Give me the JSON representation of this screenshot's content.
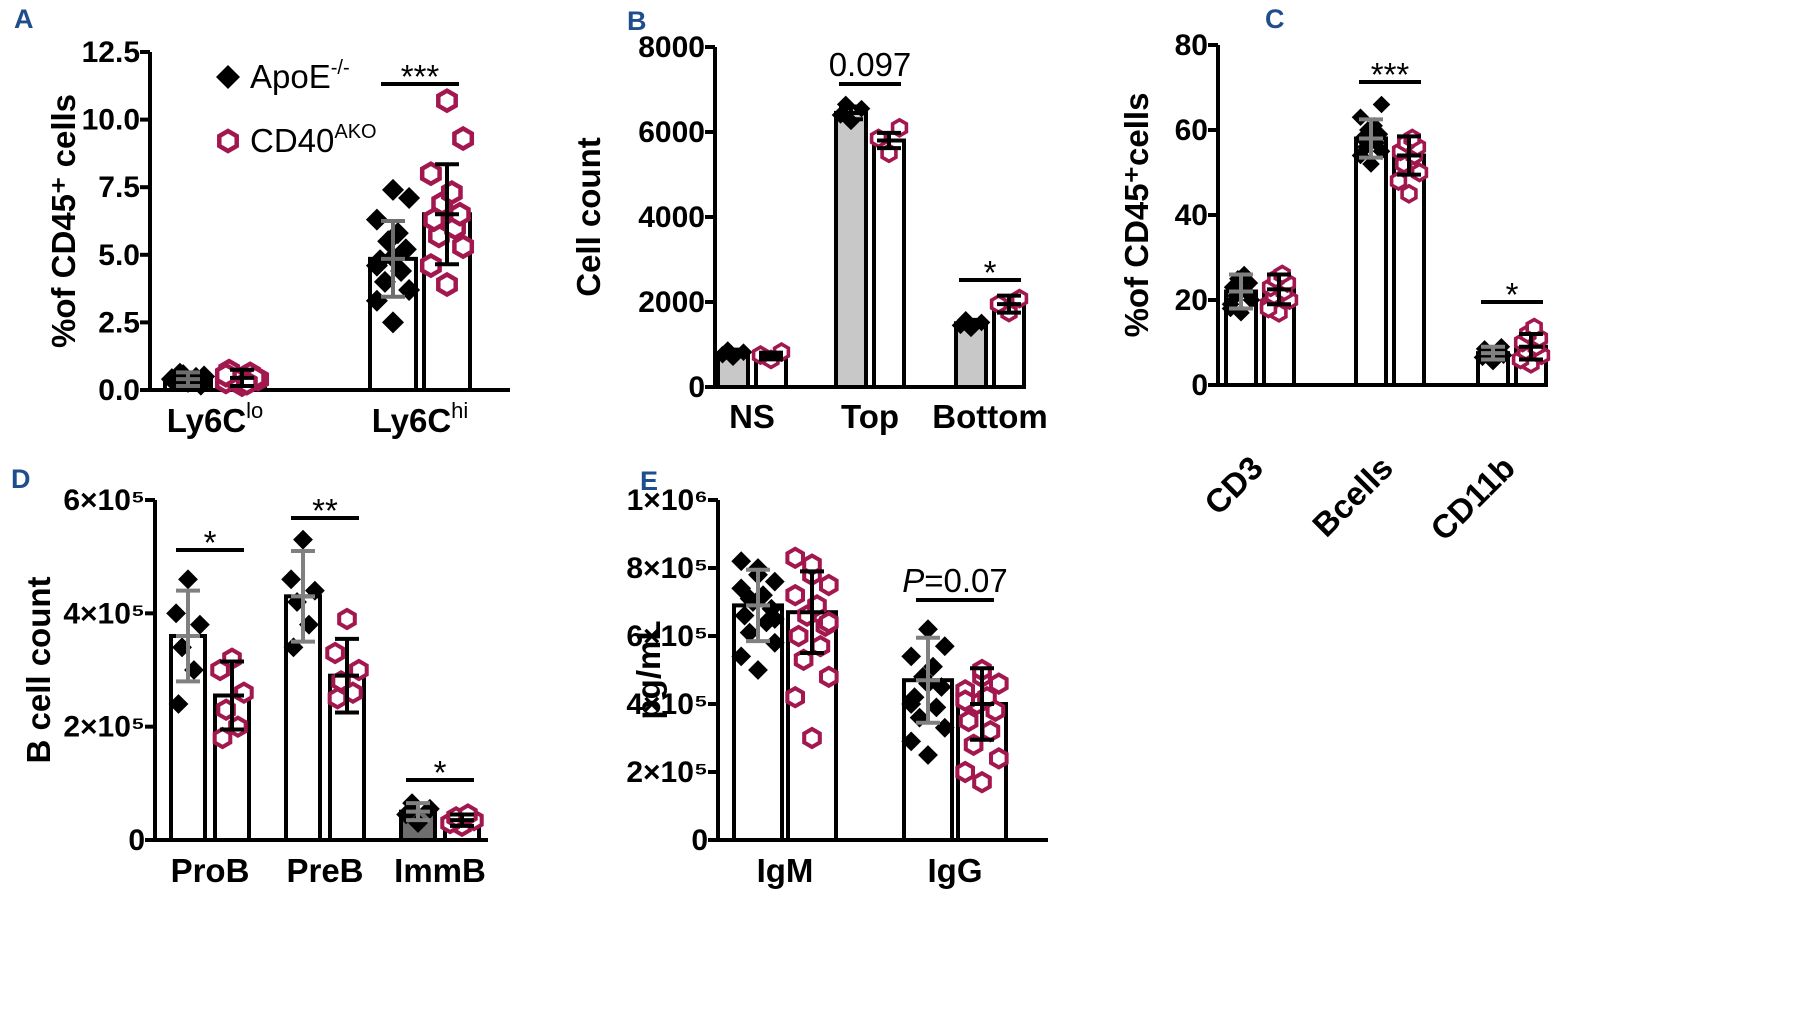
{
  "legend": {
    "series": [
      {
        "name": "ApoE",
        "superscript": "-/-",
        "marker": "diamond-icon",
        "color": "#000000"
      },
      {
        "name": "CD40",
        "superscript": "AKO",
        "marker": "open-hexagon-icon",
        "color": "#a3174f"
      }
    ]
  },
  "colors": {
    "apoe": "#000000",
    "cd40": "#a3174f",
    "grey_bar": "#c8c8c8",
    "dark_grey_bar": "#6e6e6e",
    "err_grey": "#808080",
    "panel_letter": "#1f4e8c"
  },
  "chart_data": [
    {
      "panel": "A",
      "type": "bar",
      "ylabel": "%of CD45⁺ cells",
      "ylim": [
        0,
        12.5
      ],
      "yticks": [
        "0.0",
        "2.5",
        "5.0",
        "7.5",
        "10.0",
        "12.5"
      ],
      "categories": [
        "Ly6Clo",
        "Ly6Chi"
      ],
      "category_labels": [
        {
          "base": "Ly6C",
          "sup": "lo"
        },
        {
          "base": "Ly6C",
          "sup": "hi"
        }
      ],
      "series": [
        {
          "name": "ApoE-/-",
          "values": [
            0.4,
            4.85
          ],
          "err": [
            0.25,
            1.4
          ],
          "points": [
            [
              0.3,
              0.4,
              0.5,
              0.6,
              0.45,
              0.35,
              0.2,
              0.55
            ],
            [
              2.5,
              3.3,
              3.7,
              4.0,
              4.4,
              4.8,
              5.2,
              5.5,
              5.8,
              6.3,
              7.1,
              7.4,
              4.9,
              4.6
            ]
          ]
        },
        {
          "name": "CD40AKO",
          "values": [
            0.45,
            6.5
          ],
          "err": [
            0.3,
            1.85
          ],
          "points": [
            [
              0.2,
              0.3,
              0.4,
              0.5,
              0.6,
              0.7,
              0.45,
              0.35,
              0.25,
              0.55
            ],
            [
              3.9,
              4.6,
              5.3,
              5.7,
              6.0,
              6.3,
              6.5,
              6.9,
              7.3,
              8.0,
              9.3,
              10.7
            ]
          ]
        }
      ],
      "significance": [
        {
          "category": "Ly6Chi",
          "label": "***"
        }
      ]
    },
    {
      "panel": "B",
      "type": "bar",
      "ylabel": "Cell count",
      "ylim": [
        0,
        8000
      ],
      "yticks": [
        "0",
        "2000",
        "4000",
        "6000",
        "8000"
      ],
      "categories": [
        "NS",
        "Top",
        "Bottom"
      ],
      "series": [
        {
          "name": "ApoE-/-",
          "values": [
            800,
            6450,
            1500
          ],
          "err": [
            80,
            150,
            80
          ],
          "points": [
            [
              700,
              760,
              820,
              870
            ],
            [
              6250,
              6400,
              6550,
              6650
            ],
            [
              1380,
              1450,
              1520,
              1580
            ]
          ]
        },
        {
          "name": "CD40AKO",
          "values": [
            730,
            5800,
            1950
          ],
          "err": [
            80,
            180,
            200
          ],
          "points": [
            [
              650,
              750,
              820
            ],
            [
              5500,
              5850,
              6100
            ],
            [
              1750,
              1950,
              2080
            ]
          ]
        }
      ],
      "significance": [
        {
          "category": "Top",
          "label": "0.097"
        },
        {
          "category": "Bottom",
          "label": "*"
        }
      ]
    },
    {
      "panel": "C",
      "type": "bar",
      "ylabel": "%of CD45⁺cells",
      "ylim": [
        0,
        80
      ],
      "yticks": [
        "0",
        "20",
        "40",
        "60",
        "80"
      ],
      "categories": [
        "CD3",
        "Bcells",
        "CD11b"
      ],
      "series": [
        {
          "name": "ApoE-/-",
          "values": [
            22,
            58,
            7.5
          ],
          "err": [
            4,
            4.5,
            1.5
          ],
          "points": [
            [
              17,
              19,
              20,
              21,
              22,
              23,
              24,
              25,
              26,
              18
            ],
            [
              52,
              54,
              55,
              56,
              57,
              58,
              59,
              60,
              61,
              63,
              66
            ],
            [
              5.5,
              6.5,
              7,
              7.5,
              8,
              8.5,
              9
            ]
          ]
        },
        {
          "name": "CD40AKO",
          "values": [
            22.5,
            54,
            9
          ],
          "err": [
            3.5,
            4.5,
            3
          ],
          "points": [
            [
              17,
              19,
              20,
              21,
              22,
              23,
              24,
              25,
              26,
              18
            ],
            [
              45,
              48,
              50,
              52,
              54,
              55,
              56,
              57,
              58
            ],
            [
              5,
              6,
              7,
              8,
              9,
              10,
              11,
              12,
              13.5
            ]
          ]
        }
      ],
      "significance": [
        {
          "category": "Bcells",
          "label": "***"
        },
        {
          "category": "CD11b",
          "label": "*"
        }
      ]
    },
    {
      "panel": "D",
      "type": "bar",
      "ylabel": "B cell count",
      "ylim": [
        0,
        600000
      ],
      "yticks": [
        "0",
        "2×10⁵",
        "4×10⁵",
        "6×10⁵"
      ],
      "categories": [
        "ProB",
        "PreB",
        "ImmB"
      ],
      "series": [
        {
          "name": "ApoE-/-",
          "values": [
            360000,
            430000,
            50000
          ],
          "err": [
            80000,
            80000,
            15000
          ],
          "points": [
            [
              460000,
              400000,
              380000,
              340000,
              300000,
              240000
            ],
            [
              530000,
              460000,
              440000,
              420000,
              380000,
              340000
            ],
            [
              30000,
              45000,
              55000,
              65000
            ]
          ]
        },
        {
          "name": "CD40AKO",
          "values": [
            255000,
            290000,
            35000
          ],
          "err": [
            60000,
            65000,
            10000
          ],
          "points": [
            [
              320000,
              300000,
              260000,
              230000,
              200000,
              180000
            ],
            [
              390000,
              330000,
              300000,
              280000,
              260000,
              250000
            ],
            [
              25000,
              30000,
              35000,
              40000,
              45000
            ]
          ]
        }
      ],
      "significance": [
        {
          "category": "ProB",
          "label": "*"
        },
        {
          "category": "PreB",
          "label": "**"
        },
        {
          "category": "ImmB",
          "label": "*"
        }
      ]
    },
    {
      "panel": "E",
      "type": "bar",
      "ylabel": "pg/mL",
      "ylim": [
        0,
        1000000
      ],
      "yticks": [
        "0",
        "2×10⁵",
        "4×10⁵",
        "6×10⁵",
        "8×10⁵",
        "1×10⁶"
      ],
      "categories": [
        "IgM",
        "IgG"
      ],
      "series": [
        {
          "name": "ApoE-/-",
          "values": [
            690000,
            470000
          ],
          "err": [
            105000,
            125000
          ],
          "points": [
            [
              500000,
              540000,
              580000,
              610000,
              640000,
              660000,
              680000,
              700000,
              720000,
              740000,
              760000,
              780000,
              800000,
              820000,
              650000,
              710000
            ],
            [
              250000,
              290000,
              330000,
              360000,
              390000,
              420000,
              450000,
              480000,
              510000,
              540000,
              570000,
              620000,
              460000,
              400000
            ]
          ]
        },
        {
          "name": "CD40AKO",
          "values": [
            670000,
            400000
          ],
          "err": [
            120000,
            105000
          ],
          "points": [
            [
              300000,
              420000,
              480000,
              530000,
              570000,
              600000,
              630000,
              660000,
              690000,
              720000,
              750000,
              780000,
              810000,
              830000,
              640000
            ],
            [
              170000,
              200000,
              240000,
              280000,
              320000,
              350000,
              380000,
              400000,
              420000,
              440000,
              460000,
              480000,
              500000,
              410000
            ]
          ]
        }
      ],
      "significance": [
        {
          "category": "IgG",
          "label": "=0.07",
          "prefix": "P"
        }
      ]
    }
  ]
}
